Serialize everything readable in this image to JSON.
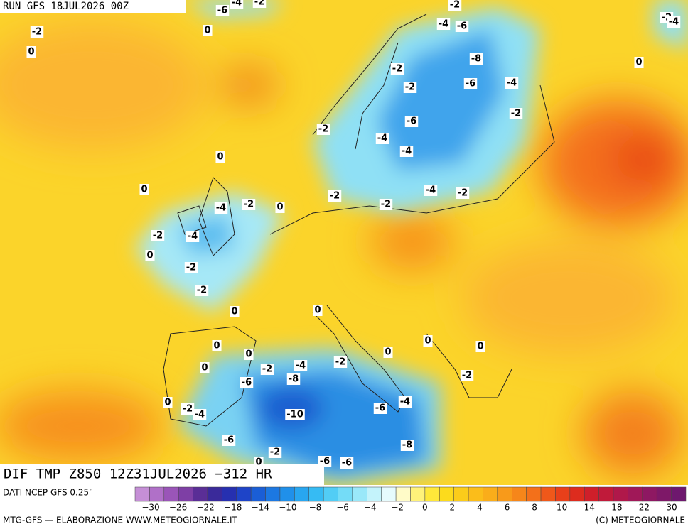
{
  "header": {
    "run": "RUN GFS 18JUL2026 00Z"
  },
  "map": {
    "contour_labels": [
      "-6",
      "-4",
      "-2",
      "-2",
      "-2",
      "-4",
      "-2",
      "0",
      "0",
      "-4",
      "-6",
      "-8",
      "0",
      "-2",
      "-2",
      "-6",
      "-4",
      "-2",
      "-6",
      "-2",
      "-4",
      "-4",
      "0",
      "0",
      "-4",
      "-2",
      "-2",
      "-2",
      "-4",
      "-2",
      "0",
      "-2",
      "-4",
      "0",
      "-2",
      "-2",
      "0",
      "0",
      "0",
      "0",
      "0",
      "0",
      "0",
      "-2",
      "-4",
      "-2",
      "0",
      "-6",
      "-8",
      "-2",
      "0",
      "-2",
      "-4",
      "-10",
      "-6",
      "-4",
      "-6",
      "-8",
      "-2",
      "0",
      "-6",
      "-6"
    ]
  },
  "footer": {
    "title": "DIF TMP Z850 12Z31JUL2026 −312 HR",
    "source": "DATI NCEP GFS 0.25°",
    "credit": "MTG-GFS — ELABORAZIONE WWW.METEOGIORNALE.IT",
    "copyright": "(C) METEOGIORNALE",
    "scale_labels": [
      "−30",
      "−26",
      "−22",
      "−18",
      "−14",
      "−10",
      "−8",
      "−6",
      "−4",
      "−2",
      "0",
      "2",
      "4",
      "6",
      "8",
      "10",
      "14",
      "18",
      "22",
      "30"
    ]
  }
}
